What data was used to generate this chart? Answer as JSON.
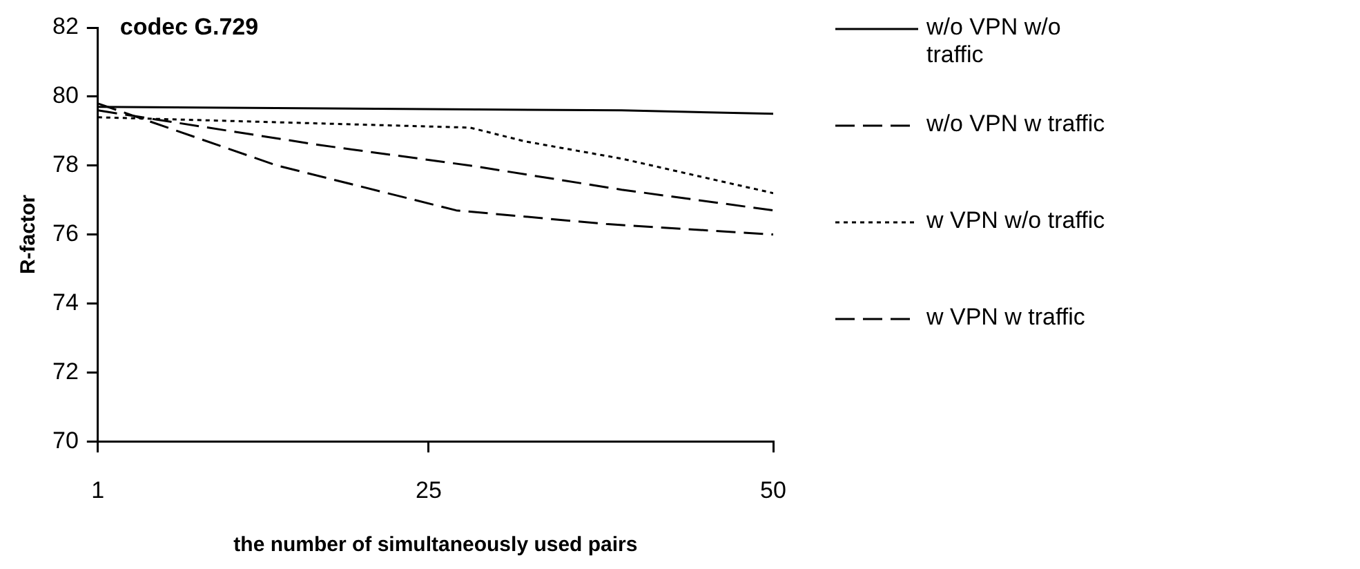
{
  "chart_data": {
    "type": "line",
    "title": "codec G.729",
    "xlabel": "the number of simultaneously used pairs",
    "ylabel": "R-factor",
    "xlim": [
      1,
      50
    ],
    "xticks": [
      1,
      25,
      50
    ],
    "ylim": [
      70,
      82
    ],
    "yticks": [
      70,
      72,
      74,
      76,
      78,
      80,
      82
    ],
    "grid": false,
    "legend": "right",
    "marker": "none",
    "series": [
      {
        "name": "w/o VPN w/o traffic",
        "color": "#000000",
        "line_style": "solid",
        "x": [
          1,
          39,
          50
        ],
        "values": [
          79.7,
          79.6,
          79.5
        ]
      },
      {
        "name": "w/o VPN w traffic",
        "color": "#000000",
        "line_style": "dashed",
        "x": [
          1,
          17,
          28,
          39,
          50
        ],
        "values": [
          79.6,
          78.6,
          78.0,
          77.3,
          76.7
        ]
      },
      {
        "name": "w VPN w/o traffic",
        "color": "#000000",
        "line_style": "dotted",
        "x": [
          1,
          28,
          32,
          39,
          50
        ],
        "values": [
          79.4,
          79.1,
          78.7,
          78.2,
          77.2
        ]
      },
      {
        "name": "w VPN w traffic",
        "color": "#000000",
        "line_style": "dashed",
        "x": [
          1,
          14,
          27,
          38,
          50
        ],
        "values": [
          79.8,
          78.0,
          76.7,
          76.3,
          76.0
        ]
      }
    ]
  }
}
